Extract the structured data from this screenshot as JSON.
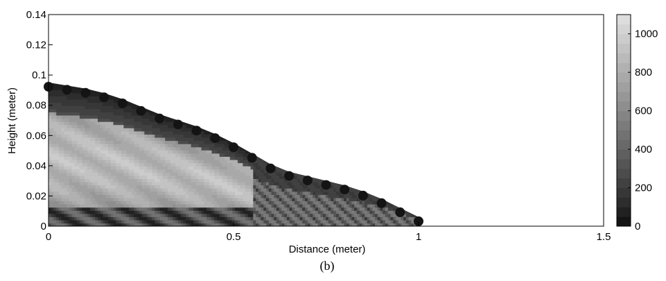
{
  "chart_data": {
    "type": "heatmap",
    "title": "",
    "caption": "(b)",
    "xlabel": "Distance (meter)",
    "ylabel": "Height (meter)",
    "xlim": [
      0,
      1.5
    ],
    "ylim": [
      0,
      0.14
    ],
    "xticks": [
      "0",
      "0.5",
      "1",
      "1.5"
    ],
    "yticks": [
      "0",
      "0.02",
      "0.04",
      "0.06",
      "0.08",
      "0.1",
      "0.12",
      "0.14"
    ],
    "colorbar": {
      "range": [
        0,
        1100
      ],
      "ticks": [
        "0",
        "200",
        "400",
        "600",
        "800",
        "1000"
      ],
      "colormap": "gray-banded"
    },
    "surface_profile": {
      "x": [
        0,
        0.05,
        0.1,
        0.15,
        0.2,
        0.25,
        0.3,
        0.35,
        0.4,
        0.45,
        0.5,
        0.55,
        0.6,
        0.65,
        0.7,
        0.75,
        0.8,
        0.85,
        0.9,
        0.95,
        1.0
      ],
      "height": [
        0.095,
        0.093,
        0.091,
        0.088,
        0.084,
        0.079,
        0.074,
        0.07,
        0.066,
        0.061,
        0.055,
        0.048,
        0.041,
        0.036,
        0.033,
        0.03,
        0.027,
        0.023,
        0.018,
        0.012,
        0.006
      ]
    }
  }
}
